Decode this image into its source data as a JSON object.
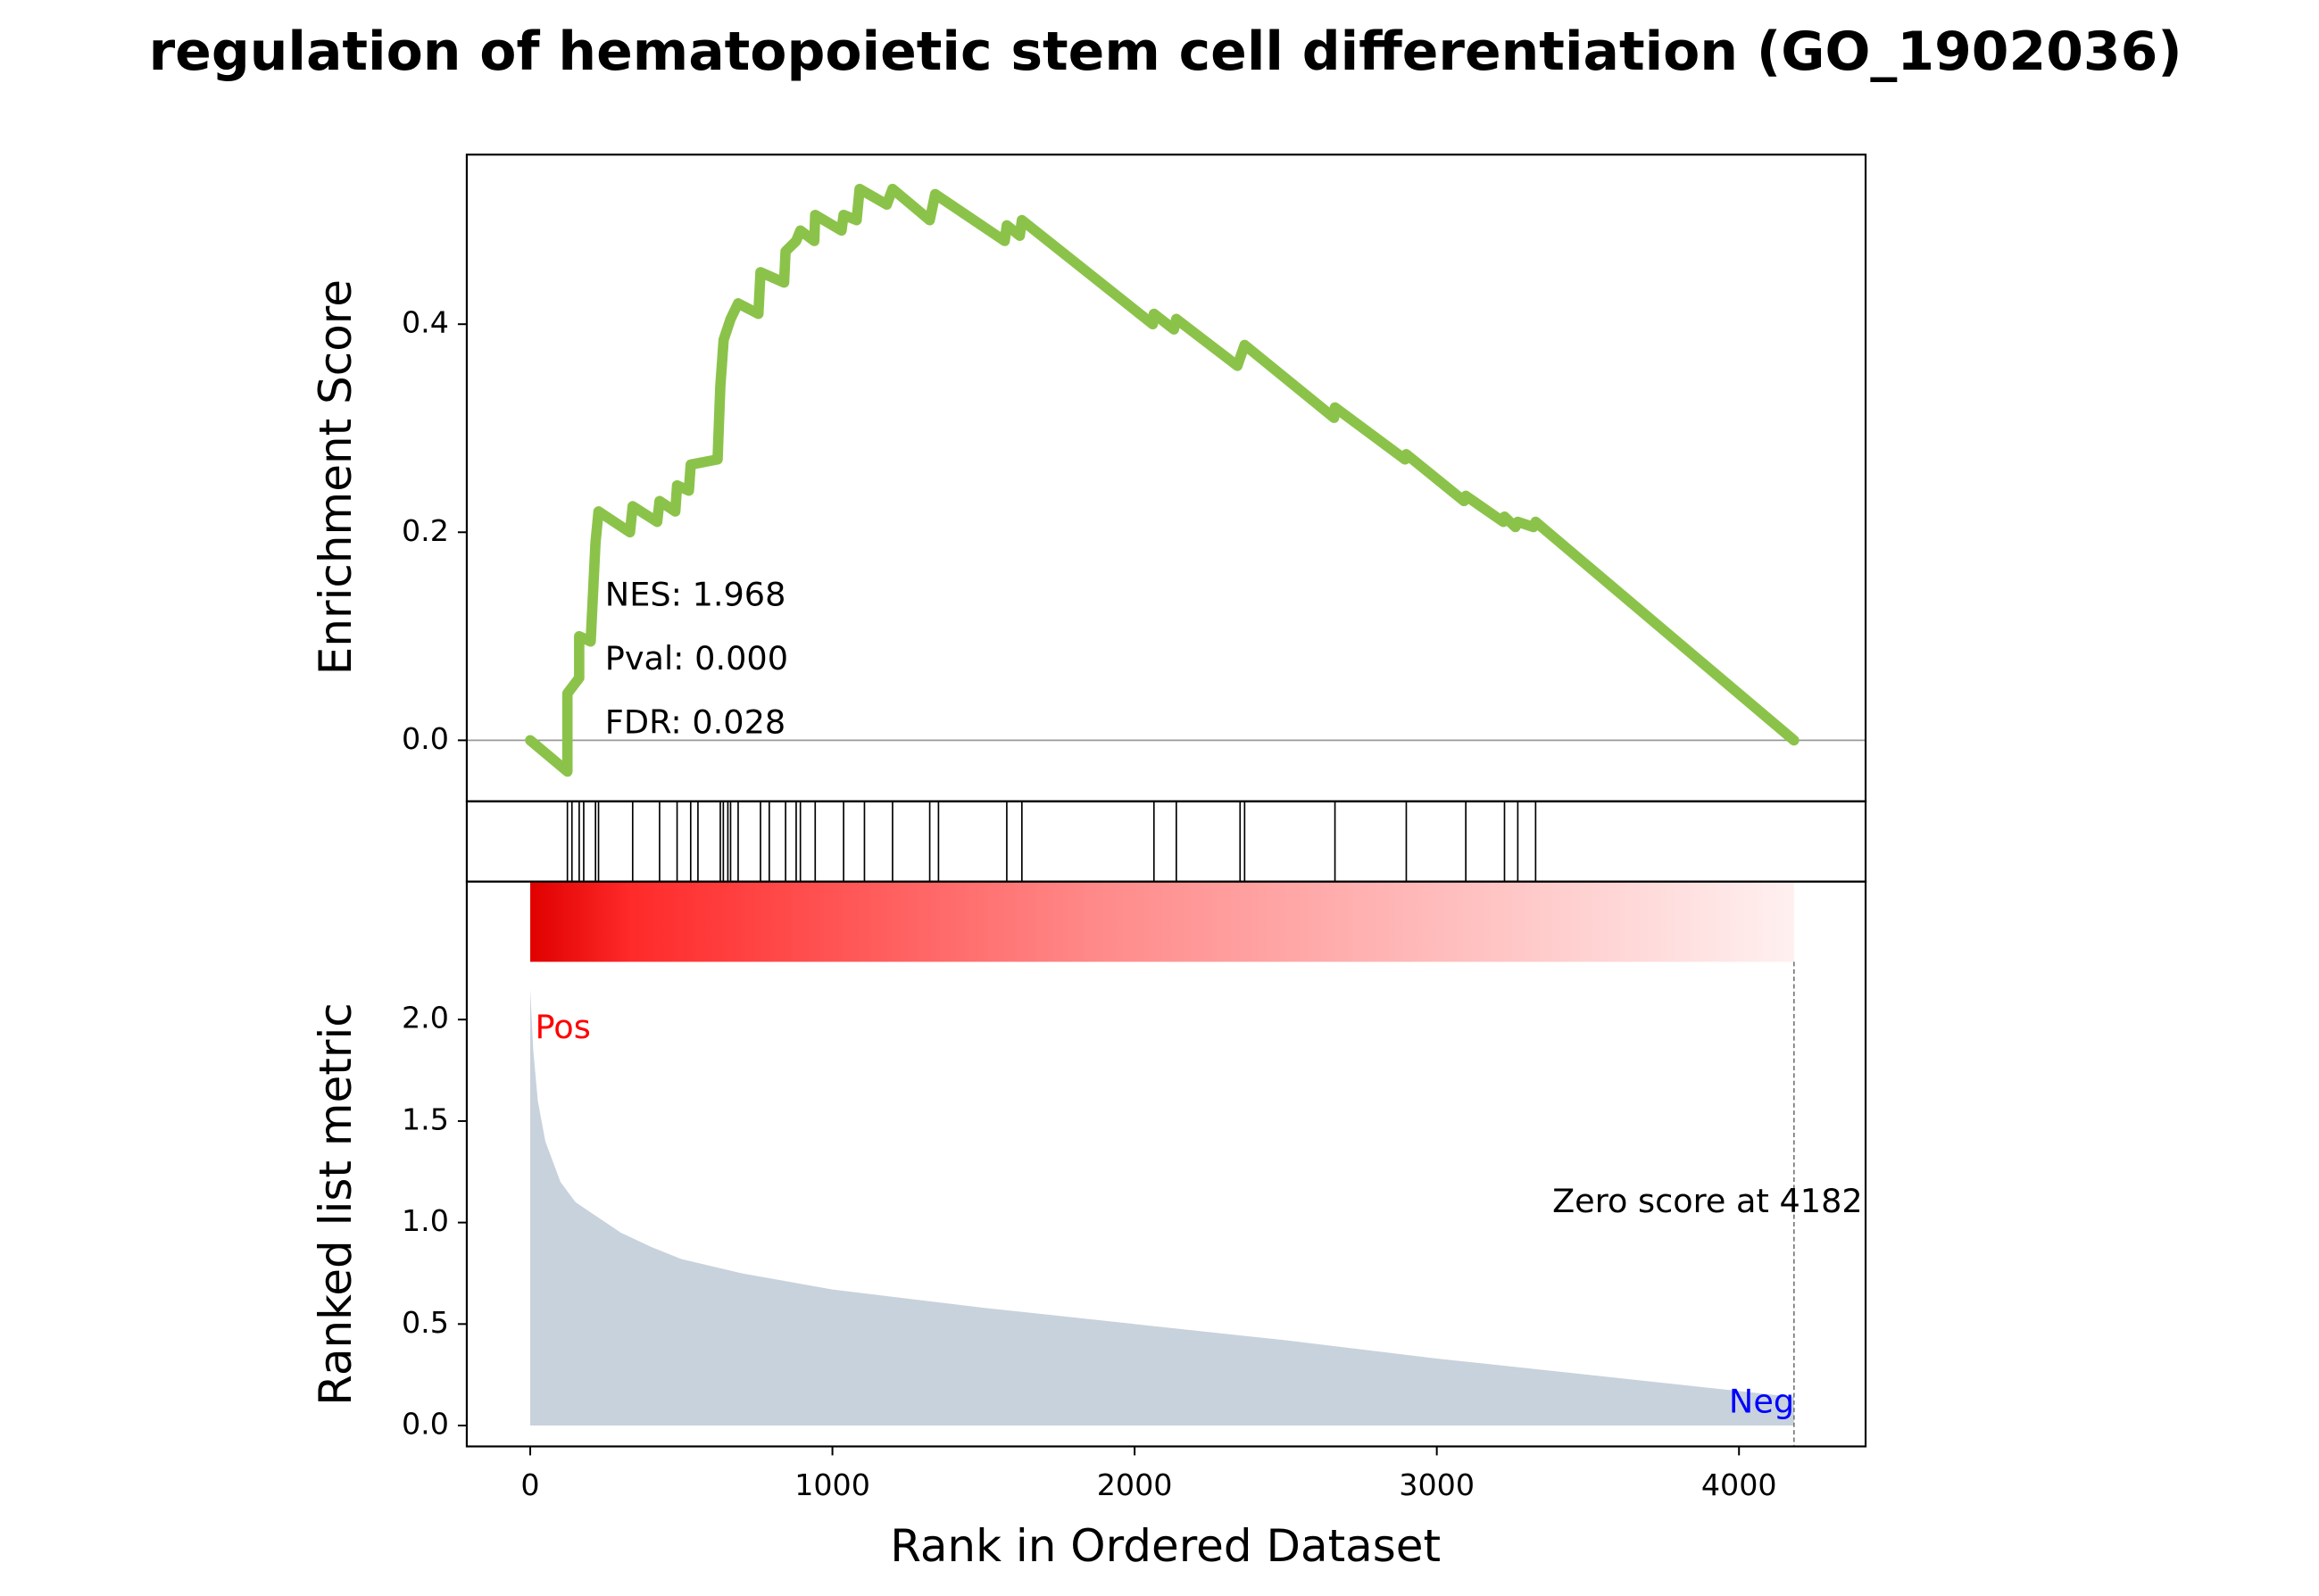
{
  "chart_data": {
    "type": "gsea",
    "title": "regulation of hematopoietic stem cell differentiation (GO_1902036)",
    "xlabel": "Rank in Ordered Dataset",
    "xlim": [
      -210,
      4419
    ],
    "xticks": [
      0,
      1000,
      2000,
      3000,
      4000
    ],
    "es": {
      "ylabel": "Enrichment Score",
      "ylim": [
        -0.0586,
        0.563
      ],
      "yticks": [
        {
          "value": 0,
          "label": "0.0"
        },
        {
          "value": 0.2,
          "label": "0.2"
        },
        {
          "value": 0.4,
          "label": "0.4"
        }
      ],
      "color": "#8bc34a",
      "x": [
        0,
        123,
        123,
        162,
        162,
        200,
        216,
        226,
        330,
        339,
        420,
        428,
        480,
        486,
        525,
        531,
        620,
        629,
        640,
        663,
        688,
        755,
        762,
        840,
        845,
        880,
        894,
        940,
        943,
        1030,
        1037,
        1080,
        1090,
        1180,
        1199,
        1322,
        1340,
        1570,
        1577,
        1620,
        1627,
        2060,
        2064,
        2130,
        2138,
        2340,
        2364,
        2660,
        2663,
        2895,
        2899,
        3090,
        3096,
        3220,
        3224,
        3260,
        3268,
        3320,
        3327,
        4182
      ],
      "values": [
        0,
        -0.03,
        0.045,
        0.06,
        0.1,
        0.095,
        0.19,
        0.22,
        0.2,
        0.225,
        0.21,
        0.23,
        0.22,
        0.245,
        0.24,
        0.265,
        0.27,
        0.34,
        0.385,
        0.405,
        0.42,
        0.41,
        0.45,
        0.44,
        0.47,
        0.48,
        0.49,
        0.48,
        0.505,
        0.49,
        0.505,
        0.5,
        0.53,
        0.515,
        0.53,
        0.5,
        0.525,
        0.48,
        0.495,
        0.485,
        0.5,
        0.4,
        0.41,
        0.395,
        0.405,
        0.36,
        0.38,
        0.31,
        0.32,
        0.27,
        0.275,
        0.23,
        0.235,
        0.21,
        0.215,
        0.205,
        0.21,
        0.205,
        0.21,
        0
      ]
    },
    "hits": {
      "color": "#000000",
      "x": [
        123,
        138,
        162,
        177,
        216,
        226,
        339,
        428,
        486,
        531,
        555,
        629,
        639,
        654,
        663,
        688,
        762,
        791,
        845,
        880,
        894,
        943,
        1037,
        1106,
        1199,
        1322,
        1351,
        1577,
        1627,
        2064,
        2138,
        2349,
        2364,
        2663,
        2899,
        3096,
        3224,
        3268,
        3327
      ]
    },
    "metric": {
      "ylabel": "Ranked list metric",
      "ylim": [
        -0.103,
        2.68
      ],
      "yticks": [
        {
          "value": 0,
          "label": "0.0"
        },
        0.5,
        {
          "value": 1,
          "label": "1.0"
        },
        1.5,
        {
          "value": 2,
          "label": "2.0"
        }
      ],
      "color": "#c8d2dc",
      "x": [
        0,
        10,
        25,
        50,
        75,
        100,
        150,
        200,
        300,
        400,
        500,
        700,
        1000,
        1500,
        2000,
        2500,
        3000,
        3500,
        4000,
        4182
      ],
      "values": [
        2.15,
        1.85,
        1.6,
        1.4,
        1.3,
        1.2,
        1.1,
        1.05,
        0.95,
        0.88,
        0.82,
        0.75,
        0.67,
        0.58,
        0.5,
        0.42,
        0.33,
        0.25,
        0.17,
        0.14
      ]
    },
    "annotations": {
      "nes": "NES: 1.968",
      "pval": "Pval: 0.000",
      "fdr": "FDR: 0.028",
      "pos": "Pos",
      "neg": "Neg",
      "zero_score": "Zero score at 4182"
    },
    "zero_score_at": 4182
  }
}
